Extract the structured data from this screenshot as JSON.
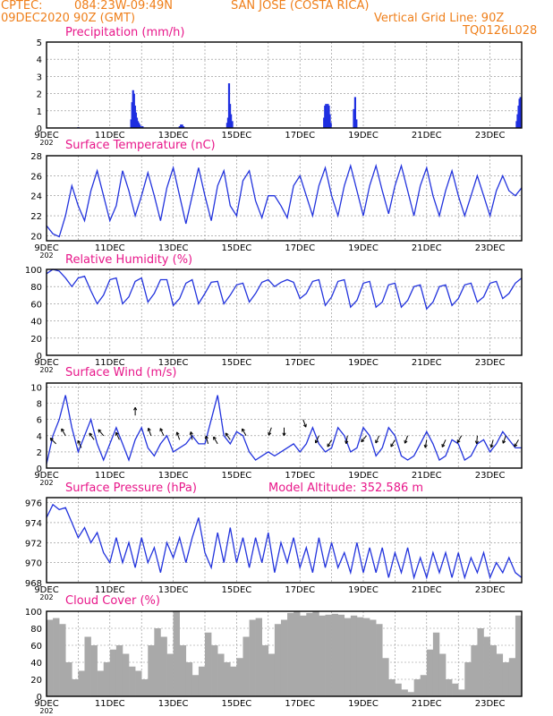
{
  "header": {
    "source": "CPTEC:",
    "coords": "084:23W-09:49N",
    "location": "SAN JOSE (COSTA RICA)",
    "run": "09DEC2020 90Z (GMT)",
    "grid_note": "Vertical Grid Line: 90Z",
    "code": "TQ0126L028"
  },
  "colors": {
    "header": "#ef7f1a",
    "title": "#e8178a",
    "line": "#2233dd",
    "cloud": "#a9a9a9",
    "bars": "#1f2fe0"
  },
  "x_labels": [
    "9DEC",
    "11DEC",
    "13DEC",
    "15DEC",
    "17DEC",
    "19DEC",
    "21DEC",
    "23DEC"
  ],
  "x_sublabel": "202",
  "chart_data": [
    {
      "type": "bar",
      "title": "Precipitation (mm/h)",
      "ylim": [
        0,
        5
      ],
      "yticks": [
        0,
        1,
        2,
        3,
        4,
        5
      ],
      "x_days": [
        1.0,
        2.67,
        2.7,
        2.73,
        2.76,
        2.79,
        2.82,
        2.85,
        2.88,
        2.91,
        2.94,
        3.0,
        3.03,
        4.2,
        4.24,
        4.28,
        4.32,
        5.7,
        5.73,
        5.76,
        5.79,
        5.82,
        5.86,
        8.76,
        8.79,
        8.82,
        8.85,
        8.88,
        8.91,
        8.94,
        8.97,
        9.7,
        9.74,
        9.78,
        14.84,
        14.87,
        14.9,
        14.93,
        14.96
      ],
      "values": [
        0.05,
        0.5,
        1.5,
        2.2,
        2.0,
        1.3,
        0.9,
        0.6,
        0.4,
        0.3,
        0.2,
        0.1,
        0.1,
        0.1,
        0.2,
        0.2,
        0.1,
        0.3,
        0.6,
        2.6,
        1.4,
        0.8,
        0.4,
        0.6,
        1.3,
        1.4,
        1.0,
        1.4,
        1.3,
        0.8,
        0.3,
        1.1,
        1.8,
        0.5,
        0.4,
        0.8,
        1.3,
        1.7,
        1.8
      ]
    },
    {
      "type": "line",
      "title": "Surface Temperature (nC)",
      "ylim": [
        19.5,
        28
      ],
      "yticks": [
        20,
        22,
        24,
        26,
        28
      ],
      "x_days": [
        0,
        0.2,
        0.4,
        0.6,
        0.8,
        1.0,
        1.2,
        1.4,
        1.6,
        1.8,
        2.0,
        2.2,
        2.4,
        2.6,
        2.8,
        3.0,
        3.2,
        3.4,
        3.6,
        3.8,
        4.0,
        4.2,
        4.4,
        4.6,
        4.8,
        5.0,
        5.2,
        5.4,
        5.6,
        5.8,
        6.0,
        6.2,
        6.4,
        6.6,
        6.8,
        7.0,
        7.2,
        7.4,
        7.6,
        7.8,
        8.0,
        8.2,
        8.4,
        8.6,
        8.8,
        9.0,
        9.2,
        9.4,
        9.6,
        9.8,
        10.0,
        10.2,
        10.4,
        10.6,
        10.8,
        11.0,
        11.2,
        11.4,
        11.6,
        11.8,
        12.0,
        12.2,
        12.4,
        12.6,
        12.8,
        13.0,
        13.2,
        13.4,
        13.6,
        13.8,
        14.0,
        14.2,
        14.4,
        14.6,
        14.8,
        15.0
      ],
      "values": [
        21.0,
        20.2,
        19.9,
        22.0,
        25.0,
        23.0,
        21.5,
        24.5,
        26.5,
        24.0,
        21.5,
        23.0,
        26.5,
        24.5,
        22.0,
        24.0,
        26.3,
        24.0,
        21.5,
        24.8,
        26.8,
        24.0,
        21.2,
        24.0,
        26.8,
        24.0,
        21.5,
        25.0,
        26.5,
        23.0,
        22.0,
        25.5,
        26.5,
        23.5,
        21.8,
        24.0,
        24.0,
        23.0,
        21.8,
        25.0,
        26.0,
        24.0,
        22.0,
        25.0,
        26.8,
        24.0,
        22.0,
        25.0,
        27.0,
        24.5,
        22.0,
        25.0,
        27.0,
        24.5,
        22.2,
        25.0,
        27.0,
        24.5,
        22.0,
        25.0,
        26.8,
        24.0,
        22.0,
        24.5,
        26.5,
        24.0,
        22.0,
        24.0,
        26.0,
        24.0,
        22.0,
        24.5,
        26.0,
        24.5,
        24.0,
        24.8
      ]
    },
    {
      "type": "line",
      "title": "Relative Humidity (%)",
      "ylim": [
        0,
        100
      ],
      "yticks": [
        0,
        20,
        40,
        60,
        80,
        100
      ],
      "x_days": [
        0,
        0.2,
        0.4,
        0.6,
        0.8,
        1.0,
        1.2,
        1.4,
        1.6,
        1.8,
        2.0,
        2.2,
        2.4,
        2.6,
        2.8,
        3.0,
        3.2,
        3.4,
        3.6,
        3.8,
        4.0,
        4.2,
        4.4,
        4.6,
        4.8,
        5.0,
        5.2,
        5.4,
        5.6,
        5.8,
        6.0,
        6.2,
        6.4,
        6.6,
        6.8,
        7.0,
        7.2,
        7.4,
        7.6,
        7.8,
        8.0,
        8.2,
        8.4,
        8.6,
        8.8,
        9.0,
        9.2,
        9.4,
        9.6,
        9.8,
        10.0,
        10.2,
        10.4,
        10.6,
        10.8,
        11.0,
        11.2,
        11.4,
        11.6,
        11.8,
        12.0,
        12.2,
        12.4,
        12.6,
        12.8,
        13.0,
        13.2,
        13.4,
        13.6,
        13.8,
        14.0,
        14.2,
        14.4,
        14.6,
        14.8,
        15.0
      ],
      "values": [
        95,
        100,
        98,
        90,
        80,
        90,
        92,
        75,
        60,
        70,
        88,
        90,
        60,
        68,
        86,
        90,
        62,
        72,
        88,
        88,
        58,
        66,
        84,
        88,
        60,
        72,
        85,
        86,
        60,
        70,
        82,
        84,
        62,
        72,
        85,
        88,
        80,
        85,
        88,
        85,
        66,
        72,
        86,
        88,
        58,
        68,
        86,
        88,
        56,
        64,
        84,
        86,
        56,
        62,
        82,
        84,
        56,
        64,
        80,
        82,
        54,
        62,
        80,
        82,
        58,
        66,
        82,
        84,
        62,
        68,
        84,
        86,
        66,
        72,
        84,
        90
      ]
    },
    {
      "type": "line",
      "title": "Surface Wind (m/s)",
      "ylim": [
        0,
        10.5
      ],
      "yticks": [
        0,
        2,
        4,
        6,
        8,
        10
      ],
      "x_days": [
        0,
        0.2,
        0.4,
        0.6,
        0.8,
        1.0,
        1.2,
        1.4,
        1.6,
        1.8,
        2.0,
        2.2,
        2.4,
        2.6,
        2.8,
        3.0,
        3.2,
        3.4,
        3.6,
        3.8,
        4.0,
        4.2,
        4.4,
        4.6,
        4.8,
        5.0,
        5.2,
        5.4,
        5.6,
        5.8,
        6.0,
        6.2,
        6.4,
        6.6,
        6.8,
        7.0,
        7.2,
        7.4,
        7.6,
        7.8,
        8.0,
        8.2,
        8.4,
        8.6,
        8.8,
        9.0,
        9.2,
        9.4,
        9.6,
        9.8,
        10.0,
        10.2,
        10.4,
        10.6,
        10.8,
        11.0,
        11.2,
        11.4,
        11.6,
        11.8,
        12.0,
        12.2,
        12.4,
        12.6,
        12.8,
        13.0,
        13.2,
        13.4,
        13.6,
        13.8,
        14.0,
        14.2,
        14.4,
        14.6,
        14.8,
        15.0
      ],
      "values": [
        0.5,
        4.0,
        6.0,
        9.0,
        5.0,
        2.0,
        4.0,
        6.0,
        3.0,
        1.0,
        3.0,
        5.0,
        3.0,
        1.0,
        3.5,
        5.0,
        2.5,
        1.5,
        3.0,
        4.0,
        2.0,
        2.5,
        3.0,
        4.0,
        3.0,
        3.0,
        6.0,
        9.0,
        4.0,
        3.0,
        4.5,
        4.0,
        2.0,
        1.0,
        1.5,
        2.0,
        1.5,
        2.0,
        2.5,
        3.0,
        2.0,
        3.0,
        5.0,
        3.0,
        2.0,
        2.5,
        5.0,
        4.0,
        2.0,
        2.5,
        5.0,
        4.0,
        1.5,
        2.5,
        5.0,
        4.0,
        1.5,
        1.0,
        1.5,
        3.0,
        4.5,
        3.0,
        1.0,
        1.5,
        3.5,
        3.0,
        1.0,
        1.5,
        3.0,
        3.5,
        2.0,
        3.0,
        4.5,
        3.5,
        2.5,
        2.5
      ]
    },
    {
      "type": "line",
      "title": "Surface Pressure (hPa)",
      "note": "Model Altitude: 352.586 m",
      "ylim": [
        968,
        976.5
      ],
      "yticks": [
        968,
        970,
        972,
        974,
        976
      ],
      "x_days": [
        0,
        0.2,
        0.4,
        0.6,
        0.8,
        1.0,
        1.2,
        1.4,
        1.6,
        1.8,
        2.0,
        2.2,
        2.4,
        2.6,
        2.8,
        3.0,
        3.2,
        3.4,
        3.6,
        3.8,
        4.0,
        4.2,
        4.4,
        4.6,
        4.8,
        5.0,
        5.2,
        5.4,
        5.6,
        5.8,
        6.0,
        6.2,
        6.4,
        6.6,
        6.8,
        7.0,
        7.2,
        7.4,
        7.6,
        7.8,
        8.0,
        8.2,
        8.4,
        8.6,
        8.8,
        9.0,
        9.2,
        9.4,
        9.6,
        9.8,
        10.0,
        10.2,
        10.4,
        10.6,
        10.8,
        11.0,
        11.2,
        11.4,
        11.6,
        11.8,
        12.0,
        12.2,
        12.4,
        12.6,
        12.8,
        13.0,
        13.2,
        13.4,
        13.6,
        13.8,
        14.0,
        14.2,
        14.4,
        14.6,
        14.8,
        15.0
      ],
      "values": [
        974.5,
        975.8,
        975.3,
        975.5,
        974.0,
        972.5,
        973.5,
        972.0,
        973.0,
        971.0,
        970.0,
        972.5,
        970.0,
        972.0,
        969.5,
        972.5,
        970.0,
        971.5,
        969.0,
        972.0,
        970.5,
        972.5,
        970.0,
        972.5,
        974.5,
        971.0,
        969.5,
        973.0,
        970.0,
        973.5,
        970.0,
        972.5,
        969.5,
        972.5,
        970.0,
        973.0,
        969.0,
        972.0,
        970.0,
        972.5,
        969.5,
        971.5,
        969.0,
        972.5,
        969.5,
        972.0,
        969.5,
        971.0,
        969.0,
        972.0,
        969.0,
        971.5,
        969.0,
        971.5,
        968.5,
        971.0,
        969.0,
        971.5,
        968.5,
        970.5,
        968.5,
        971.0,
        969.0,
        971.0,
        968.5,
        971.0,
        968.5,
        970.5,
        969.0,
        971.0,
        968.5,
        970.0,
        969.0,
        970.5,
        969.0,
        968.5
      ]
    },
    {
      "type": "area",
      "title": "Cloud Cover (%)",
      "ylim": [
        0,
        100
      ],
      "yticks": [
        0,
        20,
        40,
        60,
        80,
        100
      ],
      "x_days": [
        0,
        0.2,
        0.4,
        0.6,
        0.8,
        1.0,
        1.2,
        1.4,
        1.6,
        1.8,
        2.0,
        2.2,
        2.4,
        2.6,
        2.8,
        3.0,
        3.2,
        3.4,
        3.6,
        3.8,
        4.0,
        4.2,
        4.4,
        4.6,
        4.8,
        5.0,
        5.2,
        5.4,
        5.6,
        5.8,
        6.0,
        6.2,
        6.4,
        6.6,
        6.8,
        7.0,
        7.2,
        7.4,
        7.6,
        7.8,
        8.0,
        8.2,
        8.4,
        8.6,
        8.8,
        9.0,
        9.2,
        9.4,
        9.6,
        9.8,
        10.0,
        10.2,
        10.4,
        10.6,
        10.8,
        11.0,
        11.2,
        11.4,
        11.6,
        11.8,
        12.0,
        12.2,
        12.4,
        12.6,
        12.8,
        13.0,
        13.2,
        13.4,
        13.6,
        13.8,
        14.0,
        14.2,
        14.4,
        14.6,
        14.8,
        15.0
      ],
      "values": [
        90,
        92,
        85,
        40,
        20,
        30,
        70,
        60,
        30,
        40,
        55,
        60,
        50,
        35,
        30,
        20,
        60,
        80,
        70,
        50,
        100,
        60,
        40,
        25,
        35,
        75,
        60,
        50,
        40,
        35,
        45,
        70,
        90,
        92,
        60,
        50,
        85,
        90,
        98,
        100,
        95,
        98,
        100,
        95,
        96,
        97,
        96,
        92,
        95,
        93,
        92,
        90,
        85,
        45,
        20,
        15,
        8,
        5,
        20,
        25,
        55,
        75,
        50,
        20,
        15,
        8,
        40,
        60,
        80,
        70,
        60,
        50,
        40,
        45,
        95,
        100
      ]
    }
  ],
  "wind_barbs": {
    "days": [
      0.3,
      0.6,
      1.1,
      1.5,
      1.8,
      2.3,
      2.8,
      3.3,
      3.7,
      4.2,
      4.6,
      5.1,
      5.4,
      5.8,
      6.3,
      7.1,
      7.5,
      8.1,
      8.6,
      9.0,
      9.5,
      10.1,
      10.5,
      11.0,
      11.4,
      12.0,
      12.6,
      13.1,
      13.6,
      14.1,
      14.5,
      14.9
    ],
    "speed": [
      3.0,
      4.0,
      2.5,
      3.5,
      4.0,
      3.5,
      6.5,
      4.0,
      4.0,
      3.5,
      3.5,
      3.0,
      3.0,
      3.5,
      4.0,
      5.0,
      5.0,
      6.0,
      4.0,
      3.5,
      4.0,
      4.0,
      4.0,
      3.5,
      4.0,
      3.5,
      3.5,
      4.0,
      4.0,
      3.5,
      4.0,
      3.5
    ],
    "dir_deg": [
      225,
      240,
      245,
      235,
      230,
      245,
      270,
      250,
      245,
      250,
      260,
      255,
      240,
      235,
      240,
      110,
      90,
      70,
      115,
      120,
      100,
      130,
      115,
      120,
      110,
      100,
      115,
      120,
      95,
      105,
      110,
      120
    ]
  }
}
